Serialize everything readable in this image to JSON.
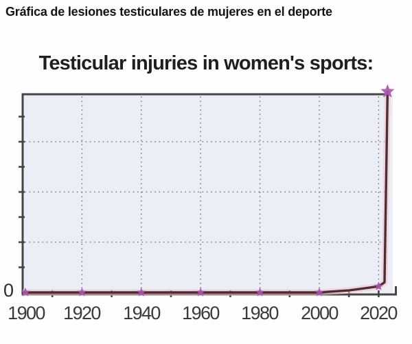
{
  "page": {
    "caption": "Gráfica de lesiones testiculares de mujeres en el deporte"
  },
  "chart_data": {
    "type": "line",
    "title": "Testicular injuries in women's sports:",
    "xlabel": "",
    "ylabel": "",
    "x_tick_labels": [
      "1900",
      "1920",
      "1940",
      "1960",
      "1980",
      "2000",
      "2020"
    ],
    "y_origin_label": "0",
    "x_range": [
      1900,
      2026
    ],
    "ylim": [
      0,
      100
    ],
    "grid": "dotted",
    "legend": "none",
    "series": [
      {
        "name": "testicular-injuries-womens-sports",
        "points": [
          {
            "x": 1900,
            "y": 0,
            "marker": true
          },
          {
            "x": 1920,
            "y": 0,
            "marker": true
          },
          {
            "x": 1940,
            "y": 0,
            "marker": true
          },
          {
            "x": 1960,
            "y": 0,
            "marker": true
          },
          {
            "x": 1980,
            "y": 0,
            "marker": true
          },
          {
            "x": 2000,
            "y": 0,
            "marker": true
          },
          {
            "x": 2010,
            "y": 1,
            "marker": false
          },
          {
            "x": 2015,
            "y": 2,
            "marker": false
          },
          {
            "x": 2020,
            "y": 3,
            "marker": true
          },
          {
            "x": 2022,
            "y": 5,
            "marker": false
          },
          {
            "x": 2023,
            "y": 100,
            "marker": true
          }
        ]
      }
    ],
    "colors": {
      "line": "#4e2d33",
      "line_glow": "#f3c3ca",
      "marker": "#a855ad",
      "frame": "#454545",
      "plot_bg": "#eceef6",
      "grid_dots": "#7c7c88",
      "caption_text": "#141414",
      "title_text": "#1f1f1f",
      "tick_text": "#3a3a3a"
    }
  }
}
